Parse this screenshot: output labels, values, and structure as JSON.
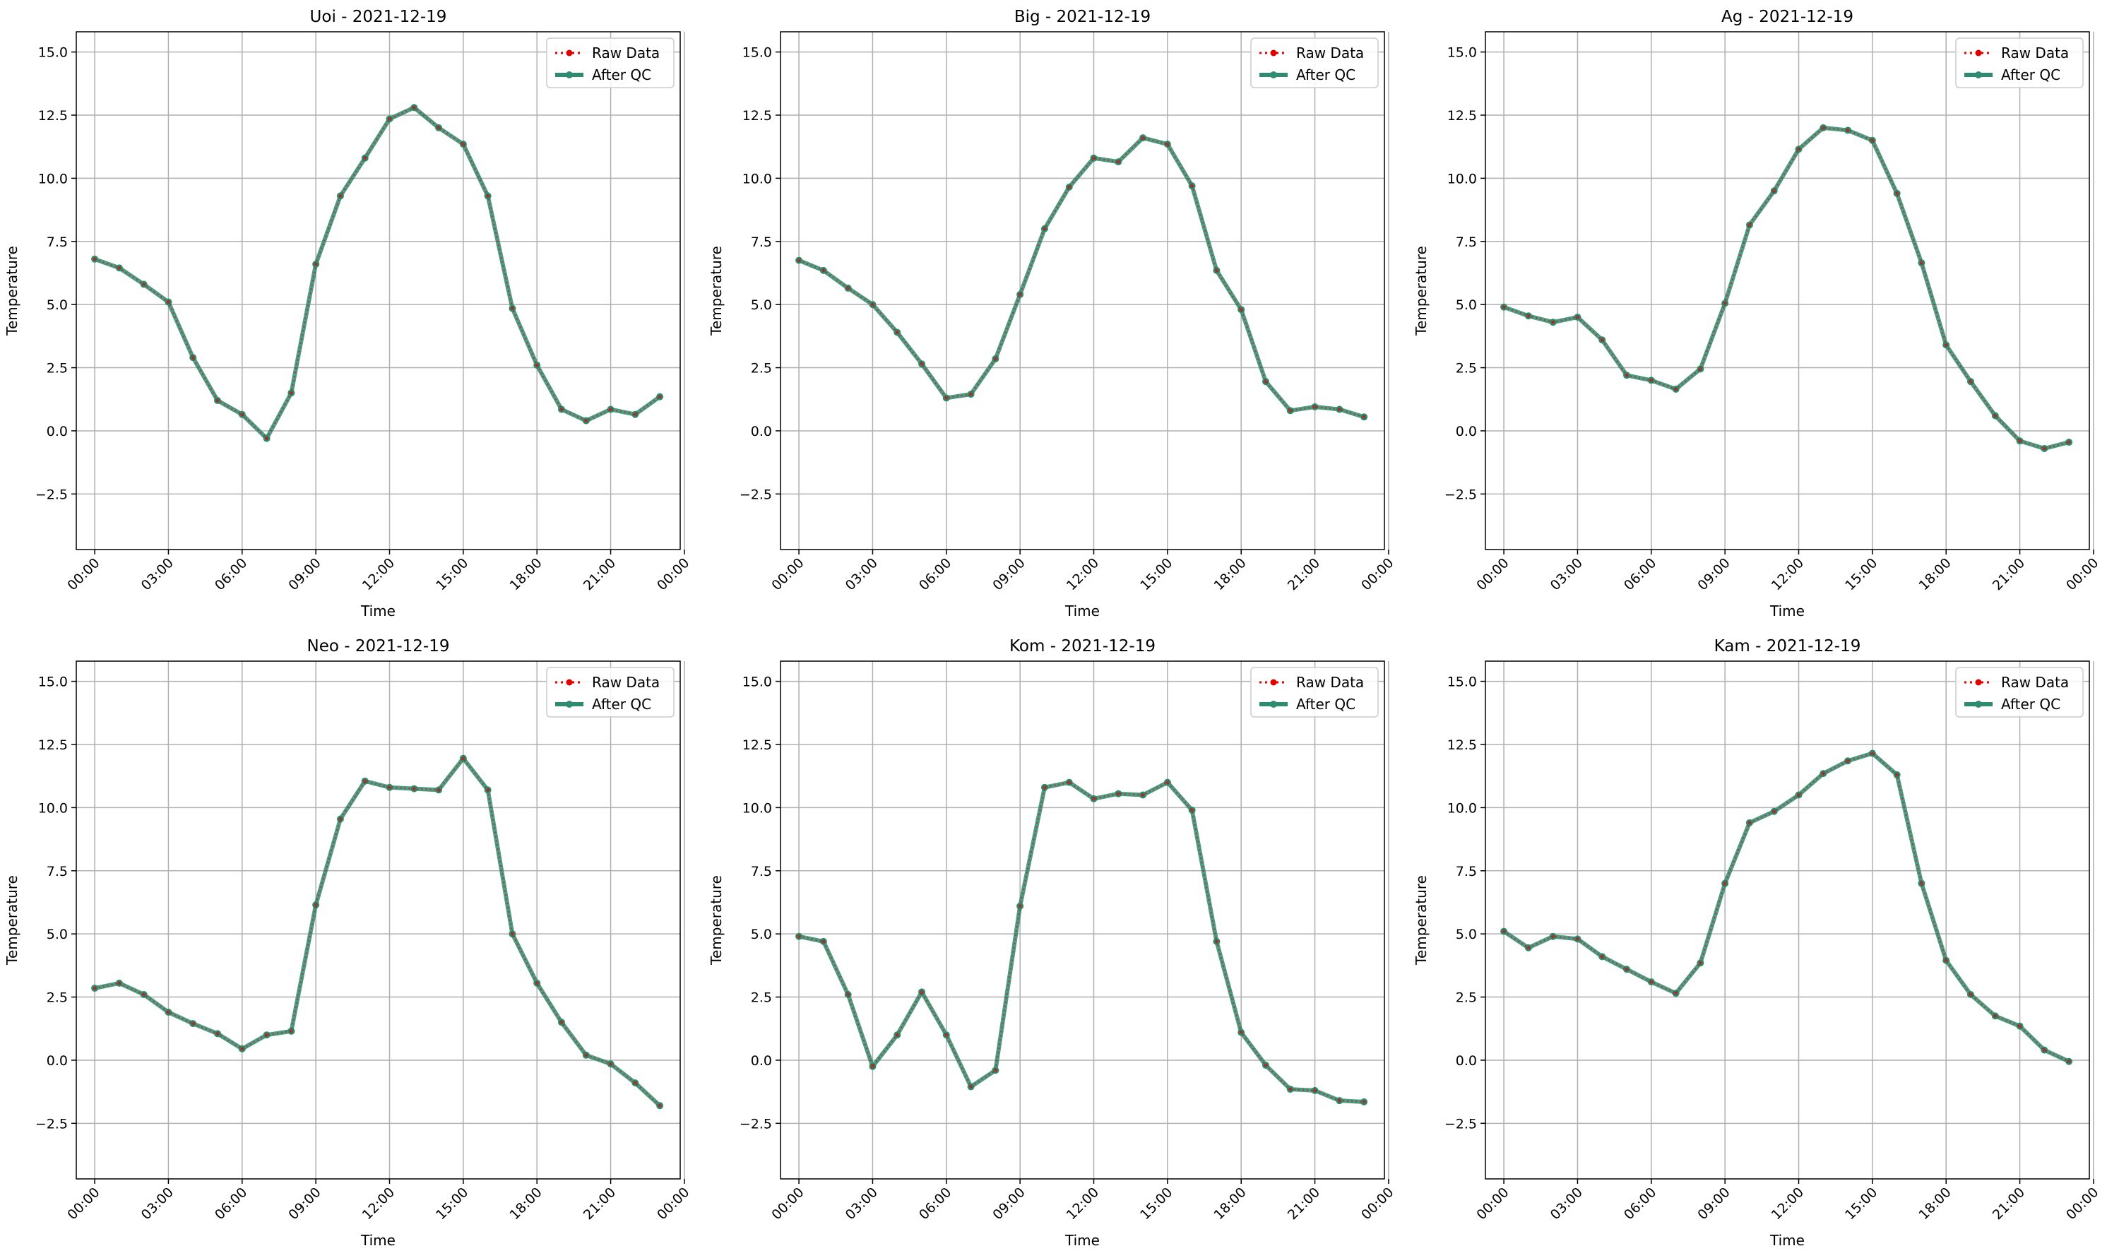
{
  "chart_data": [
    {
      "type": "line",
      "title": "Uoi - 2021-12-19",
      "xlabel": "Time",
      "ylabel": "Temperature",
      "ylim": [
        -4.7,
        15.8
      ],
      "yticks": [
        "−2.5",
        "0.0",
        "2.5",
        "5.0",
        "7.5",
        "10.0",
        "12.5",
        "15.0"
      ],
      "xticks": [
        "00:00",
        "03:00",
        "06:00",
        "09:00",
        "12:00",
        "15:00",
        "18:00",
        "21:00",
        "00:00"
      ],
      "x": [
        0,
        1,
        2,
        3,
        4,
        5,
        6,
        7,
        8,
        9,
        10,
        11,
        12,
        13,
        14,
        15,
        16,
        17,
        18,
        19,
        20,
        21,
        22,
        23
      ],
      "series": [
        {
          "name": "Raw Data",
          "values": [
            6.8,
            6.45,
            5.8,
            5.1,
            2.9,
            1.2,
            0.65,
            -0.3,
            1.5,
            6.6,
            9.3,
            10.8,
            12.35,
            12.8,
            12.0,
            11.35,
            9.3,
            4.85,
            2.6,
            0.85,
            0.4,
            0.85,
            0.65,
            1.35
          ]
        },
        {
          "name": "After QC",
          "values": [
            6.8,
            6.45,
            5.8,
            5.1,
            2.9,
            1.2,
            0.65,
            -0.3,
            1.5,
            6.6,
            9.3,
            10.8,
            12.35,
            12.8,
            12.0,
            11.35,
            9.3,
            4.85,
            2.6,
            0.85,
            0.4,
            0.85,
            0.65,
            1.35
          ]
        }
      ],
      "grid": true,
      "legend": "top-right"
    },
    {
      "type": "line",
      "title": "Big - 2021-12-19",
      "xlabel": "Time",
      "ylabel": "Temperature",
      "ylim": [
        -4.7,
        15.8
      ],
      "yticks": [
        "−2.5",
        "0.0",
        "2.5",
        "5.0",
        "7.5",
        "10.0",
        "12.5",
        "15.0"
      ],
      "xticks": [
        "00:00",
        "03:00",
        "06:00",
        "09:00",
        "12:00",
        "15:00",
        "18:00",
        "21:00",
        "00:00"
      ],
      "x": [
        0,
        1,
        2,
        3,
        4,
        5,
        6,
        7,
        8,
        9,
        10,
        11,
        12,
        13,
        14,
        15,
        16,
        17,
        18,
        19,
        20,
        21,
        22,
        23
      ],
      "series": [
        {
          "name": "Raw Data",
          "values": [
            6.75,
            6.35,
            5.65,
            5.0,
            3.9,
            2.65,
            1.3,
            1.45,
            2.85,
            5.4,
            8.0,
            9.65,
            10.8,
            10.65,
            11.6,
            11.35,
            9.7,
            6.35,
            4.8,
            1.95,
            0.8,
            0.95,
            0.85,
            0.55
          ]
        },
        {
          "name": "After QC",
          "values": [
            6.75,
            6.35,
            5.65,
            5.0,
            3.9,
            2.65,
            1.3,
            1.45,
            2.85,
            5.4,
            8.0,
            9.65,
            10.8,
            10.65,
            11.6,
            11.35,
            9.7,
            6.35,
            4.8,
            1.95,
            0.8,
            0.95,
            0.85,
            0.55
          ]
        }
      ],
      "grid": true,
      "legend": "top-right"
    },
    {
      "type": "line",
      "title": "Ag - 2021-12-19",
      "xlabel": "Time",
      "ylabel": "Temperature",
      "ylim": [
        -4.7,
        15.8
      ],
      "yticks": [
        "−2.5",
        "0.0",
        "2.5",
        "5.0",
        "7.5",
        "10.0",
        "12.5",
        "15.0"
      ],
      "xticks": [
        "00:00",
        "03:00",
        "06:00",
        "09:00",
        "12:00",
        "15:00",
        "18:00",
        "21:00",
        "00:00"
      ],
      "x": [
        0,
        1,
        2,
        3,
        4,
        5,
        6,
        7,
        8,
        9,
        10,
        11,
        12,
        13,
        14,
        15,
        16,
        17,
        18,
        19,
        20,
        21,
        22,
        23
      ],
      "series": [
        {
          "name": "Raw Data",
          "values": [
            4.9,
            4.55,
            4.3,
            4.5,
            3.6,
            2.2,
            2.0,
            1.65,
            2.45,
            5.05,
            8.15,
            9.5,
            11.15,
            12.0,
            11.9,
            11.5,
            9.4,
            6.65,
            3.4,
            1.95,
            0.6,
            -0.4,
            -0.7,
            -0.45
          ]
        },
        {
          "name": "After QC",
          "values": [
            4.9,
            4.55,
            4.3,
            4.5,
            3.6,
            2.2,
            2.0,
            1.65,
            2.45,
            5.05,
            8.15,
            9.5,
            11.15,
            12.0,
            11.9,
            11.5,
            9.4,
            6.65,
            3.4,
            1.95,
            0.6,
            -0.4,
            -0.7,
            -0.45
          ]
        }
      ],
      "grid": true,
      "legend": "top-right"
    },
    {
      "type": "line",
      "title": "Neo - 2021-12-19",
      "xlabel": "Time",
      "ylabel": "Temperature",
      "ylim": [
        -4.7,
        15.8
      ],
      "yticks": [
        "−2.5",
        "0.0",
        "2.5",
        "5.0",
        "7.5",
        "10.0",
        "12.5",
        "15.0"
      ],
      "xticks": [
        "00:00",
        "03:00",
        "06:00",
        "09:00",
        "12:00",
        "15:00",
        "18:00",
        "21:00",
        "00:00"
      ],
      "x": [
        0,
        1,
        2,
        3,
        4,
        5,
        6,
        7,
        8,
        9,
        10,
        11,
        12,
        13,
        14,
        15,
        16,
        17,
        18,
        19,
        20,
        21,
        22,
        23
      ],
      "series": [
        {
          "name": "Raw Data",
          "values": [
            2.85,
            3.05,
            2.6,
            1.9,
            1.45,
            1.05,
            0.45,
            1.0,
            1.15,
            6.15,
            9.55,
            11.05,
            10.8,
            10.75,
            10.7,
            11.95,
            10.7,
            5.0,
            3.05,
            1.5,
            0.2,
            -0.15,
            -0.9,
            -1.8
          ]
        },
        {
          "name": "After QC",
          "values": [
            2.85,
            3.05,
            2.6,
            1.9,
            1.45,
            1.05,
            0.45,
            1.0,
            1.15,
            6.15,
            9.55,
            11.05,
            10.8,
            10.75,
            10.7,
            11.95,
            10.7,
            5.0,
            3.05,
            1.5,
            0.2,
            -0.15,
            -0.9,
            -1.8
          ]
        }
      ],
      "grid": true,
      "legend": "top-right"
    },
    {
      "type": "line",
      "title": "Kom - 2021-12-19",
      "xlabel": "Time",
      "ylabel": "Temperature",
      "ylim": [
        -4.7,
        15.8
      ],
      "yticks": [
        "−2.5",
        "0.0",
        "2.5",
        "5.0",
        "7.5",
        "10.0",
        "12.5",
        "15.0"
      ],
      "xticks": [
        "00:00",
        "03:00",
        "06:00",
        "09:00",
        "12:00",
        "15:00",
        "18:00",
        "21:00",
        "00:00"
      ],
      "x": [
        0,
        1,
        2,
        3,
        4,
        5,
        6,
        7,
        8,
        9,
        10,
        11,
        12,
        13,
        14,
        15,
        16,
        17,
        18,
        19,
        20,
        21,
        22,
        23
      ],
      "series": [
        {
          "name": "Raw Data",
          "values": [
            4.9,
            4.7,
            2.6,
            -0.25,
            1.0,
            2.7,
            1.0,
            -1.05,
            -0.4,
            6.1,
            10.8,
            11.0,
            10.35,
            10.55,
            10.5,
            11.0,
            9.9,
            4.7,
            1.1,
            -0.2,
            -1.15,
            -1.2,
            -1.6,
            -1.65
          ]
        },
        {
          "name": "After QC",
          "values": [
            4.9,
            4.7,
            2.6,
            -0.25,
            1.0,
            2.7,
            1.0,
            -1.05,
            -0.4,
            6.1,
            10.8,
            11.0,
            10.35,
            10.55,
            10.5,
            11.0,
            9.9,
            4.7,
            1.1,
            -0.2,
            -1.15,
            -1.2,
            -1.6,
            -1.65
          ]
        }
      ],
      "grid": true,
      "legend": "top-right"
    },
    {
      "type": "line",
      "title": "Kam - 2021-12-19",
      "xlabel": "Time",
      "ylabel": "Temperature",
      "ylim": [
        -4.7,
        15.8
      ],
      "yticks": [
        "−2.5",
        "0.0",
        "2.5",
        "5.0",
        "7.5",
        "10.0",
        "12.5",
        "15.0"
      ],
      "xticks": [
        "00:00",
        "03:00",
        "06:00",
        "09:00",
        "12:00",
        "15:00",
        "18:00",
        "21:00",
        "00:00"
      ],
      "x": [
        0,
        1,
        2,
        3,
        4,
        5,
        6,
        7,
        8,
        9,
        10,
        11,
        12,
        13,
        14,
        15,
        16,
        17,
        18,
        19,
        20,
        21,
        22,
        23
      ],
      "series": [
        {
          "name": "Raw Data",
          "values": [
            5.1,
            4.45,
            4.9,
            4.8,
            4.1,
            3.6,
            3.1,
            2.65,
            3.85,
            7.0,
            9.4,
            9.85,
            10.5,
            11.35,
            11.85,
            12.15,
            11.3,
            7.0,
            3.95,
            2.6,
            1.75,
            1.35,
            0.4,
            -0.05
          ]
        },
        {
          "name": "After QC",
          "values": [
            5.1,
            4.45,
            4.9,
            4.8,
            4.1,
            3.6,
            3.1,
            2.65,
            3.85,
            7.0,
            9.4,
            9.85,
            10.5,
            11.35,
            11.85,
            12.15,
            11.3,
            7.0,
            3.95,
            2.6,
            1.75,
            1.35,
            0.4,
            -0.05
          ]
        }
      ],
      "grid": true,
      "legend": "top-right"
    }
  ],
  "colors": {
    "raw": "#e00000",
    "qc": "#2e8b6f",
    "grid": "#b0b0b0",
    "axes": "#000000",
    "legend_border": "#cccccc"
  }
}
